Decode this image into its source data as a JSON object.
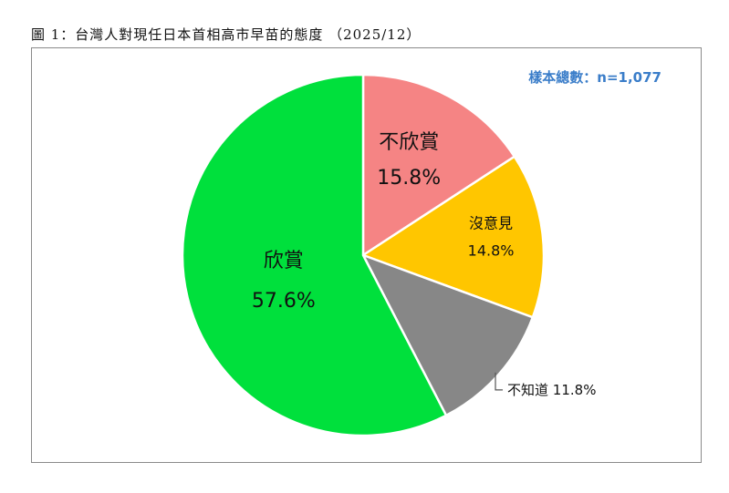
{
  "figure": {
    "title": "圖 1：台灣人對現任日本首相高市早苗的態度 （2025/12）",
    "sample_size": "樣本總數：n=1,077"
  },
  "chart_data": {
    "type": "pie",
    "slices": [
      {
        "label": "不欣賞",
        "value": 15.8,
        "value_label": "15.8%",
        "color": "#f58484"
      },
      {
        "label": "沒意見",
        "value": 14.8,
        "value_label": "14.8%",
        "color": "#ffc600"
      },
      {
        "label": "不知道",
        "value": 11.8,
        "value_label": "11.8%",
        "color": "#878787"
      },
      {
        "label": "欣賞",
        "value": 57.6,
        "value_label": "57.6%",
        "color": "#00e03c"
      }
    ],
    "start": "12 o'clock",
    "direction": "clockwise",
    "colors": {
      "border": "#ffffff",
      "sample_text": "#3a7dc9"
    }
  }
}
